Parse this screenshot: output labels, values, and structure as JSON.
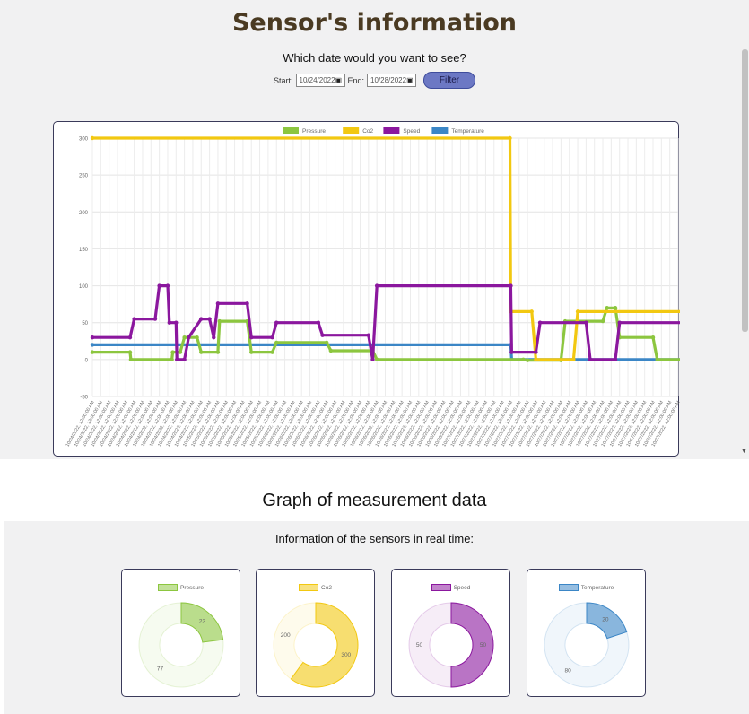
{
  "header": {
    "title": "Sensor's information",
    "question": "Which date would you want to see?"
  },
  "filter": {
    "start_label": "Start:",
    "start_value": "10/24/2022",
    "end_label": "End:",
    "end_value": "10/28/2022",
    "button_label": "Filter"
  },
  "colors": {
    "pressure": "#8cc63f",
    "co2": "#f2c811",
    "speed": "#8b179e",
    "temperature": "#3b86c6"
  },
  "chart_data": {
    "type": "line",
    "title": "",
    "xlabel": "",
    "ylabel": "",
    "ylim": [
      -50,
      300
    ],
    "yticks": [
      -50,
      0,
      50,
      100,
      150,
      200,
      250,
      300
    ],
    "grid": true,
    "legend_position": "top",
    "x_tick_count": 71,
    "x_tick_labels": [
      "10/24/2022, 12:00:00 AM",
      "10/24/2022, 12:00:00 AM",
      "10/24/2022, 12:00:00 AM",
      "10/24/2022, 12:00:00 AM",
      "10/24/2022, 12:00:00 AM",
      "10/24/2022, 12:00:00 AM",
      "10/24/2022, 12:00:00 AM",
      "10/24/2022, 12:00:00 AM",
      "10/24/2022, 12:00:00 AM",
      "10/24/2022, 12:00:00 AM",
      "10/24/2022, 12:00:00 AM",
      "10/24/2022, 12:00:00 AM",
      "10/24/2022, 12:00:00 AM",
      "10/24/2022, 12:00:00 AM",
      "10/25/2022, 12:00:00 AM",
      "10/25/2022, 12:00:00 AM",
      "10/25/2022, 12:00:00 AM",
      "10/25/2022, 12:00:00 AM",
      "10/25/2022, 12:00:00 AM",
      "10/25/2022, 12:00:00 AM",
      "10/25/2022, 12:00:00 AM",
      "10/25/2022, 12:00:00 AM",
      "10/25/2022, 12:00:00 AM",
      "10/26/2022, 12:00:00 AM",
      "10/26/2022, 12:00:00 AM",
      "10/26/2022, 12:00:00 AM",
      "10/26/2022, 12:00:00 AM",
      "10/26/2022, 12:00:00 AM",
      "10/26/2022, 12:00:00 AM",
      "10/26/2022, 12:00:00 AM",
      "10/26/2022, 12:00:00 AM",
      "10/26/2022, 12:00:00 AM",
      "10/26/2022, 12:00:00 AM",
      "10/26/2022, 12:00:00 AM",
      "10/26/2022, 12:00:00 AM",
      "10/26/2022, 12:00:00 AM",
      "10/26/2022, 12:00:00 AM",
      "10/26/2022, 12:00:00 AM",
      "10/26/2022, 12:00:00 AM",
      "10/26/2022, 12:00:00 AM",
      "10/26/2022, 12:00:00 AM",
      "10/26/2022, 12:00:00 AM",
      "10/26/2022, 12:00:00 AM",
      "10/26/2022, 12:00:00 AM",
      "10/26/2022, 12:00:00 AM",
      "10/27/2022, 12:00:00 AM",
      "10/27/2022, 12:00:00 AM",
      "10/27/2022, 12:00:00 AM",
      "10/27/2022, 12:00:00 AM",
      "10/27/2022, 12:00:00 AM",
      "10/27/2022, 12:00:00 AM",
      "10/27/2022, 12:00:00 AM",
      "10/27/2022, 12:00:00 AM",
      "10/27/2022, 12:00:00 AM",
      "10/27/2022, 12:00:00 AM",
      "10/27/2022, 12:00:00 AM",
      "10/27/2022, 12:00:00 AM",
      "10/27/2022, 12:00:00 AM",
      "10/27/2022, 12:00:00 AM",
      "10/27/2022, 12:00:00 AM",
      "10/27/2022, 12:00:00 AM",
      "10/27/2022, 12:00:00 AM",
      "10/27/2022, 12:00:00 AM",
      "10/27/2022, 12:00:00 AM",
      "10/27/2022, 12:00:00 AM",
      "10/27/2022, 12:00:00 AM",
      "10/27/2022, 12:00:00 AM",
      "10/27/2022, 12:00:00 AM",
      "10/27/2022, 12:00:00 AM",
      "10/27/2022, 12:00:00 AM",
      "10/27/2022, 12:00:00 AM"
    ],
    "series": [
      {
        "name": "Pressure",
        "color": "#8cc63f",
        "points": [
          [
            0,
            10
          ],
          [
            4.5,
            10
          ],
          [
            4.6,
            0
          ],
          [
            9.5,
            0
          ],
          [
            9.6,
            10
          ],
          [
            10.5,
            10
          ],
          [
            11,
            30
          ],
          [
            12.5,
            30
          ],
          [
            13,
            10
          ],
          [
            15,
            10
          ],
          [
            15.2,
            52
          ],
          [
            18.5,
            52
          ],
          [
            19,
            10
          ],
          [
            21.5,
            10
          ],
          [
            22,
            23
          ],
          [
            28,
            23
          ],
          [
            28.5,
            12
          ],
          [
            33.5,
            12
          ],
          [
            34,
            0
          ],
          [
            51.5,
            0
          ],
          [
            52,
            -1
          ],
          [
            56,
            -1
          ],
          [
            56.5,
            52
          ],
          [
            61,
            52
          ],
          [
            61.5,
            70
          ],
          [
            62.5,
            70
          ],
          [
            63,
            30
          ],
          [
            67,
            30
          ],
          [
            67.5,
            0
          ],
          [
            70.5,
            0
          ],
          [
            71,
            0
          ]
        ]
      },
      {
        "name": "Co2",
        "color": "#f2c811",
        "points": [
          [
            0,
            300
          ],
          [
            49.9,
            300
          ],
          [
            50,
            65
          ],
          [
            52.5,
            65
          ],
          [
            53,
            0
          ],
          [
            57.5,
            0
          ],
          [
            58,
            65
          ],
          [
            71,
            65
          ]
        ]
      },
      {
        "name": "Speed",
        "color": "#8b179e",
        "points": [
          [
            0,
            30
          ],
          [
            4.5,
            30
          ],
          [
            5,
            55
          ],
          [
            7.5,
            55
          ],
          [
            8,
            100
          ],
          [
            9,
            100
          ],
          [
            9.2,
            50
          ],
          [
            10,
            50
          ],
          [
            10.1,
            0
          ],
          [
            11,
            0
          ],
          [
            11.5,
            30
          ],
          [
            13,
            55
          ],
          [
            14,
            55
          ],
          [
            14.5,
            30
          ],
          [
            15,
            76
          ],
          [
            18.5,
            76
          ],
          [
            19,
            30
          ],
          [
            21.5,
            30
          ],
          [
            22,
            50
          ],
          [
            27,
            50
          ],
          [
            27.5,
            33
          ],
          [
            33,
            33
          ],
          [
            33.5,
            0
          ],
          [
            34,
            100
          ],
          [
            50,
            100
          ],
          [
            50.1,
            10
          ],
          [
            53,
            10
          ],
          [
            53.5,
            50
          ],
          [
            59,
            50
          ],
          [
            59.5,
            0
          ],
          [
            62.5,
            0
          ],
          [
            63,
            50
          ],
          [
            71,
            50
          ]
        ]
      },
      {
        "name": "Temperature",
        "color": "#3b86c6",
        "points": [
          [
            0,
            20
          ],
          [
            50,
            20
          ],
          [
            50.1,
            0
          ],
          [
            71,
            0
          ]
        ]
      }
    ]
  },
  "graph_heading": "Graph of measurement data",
  "realtime": {
    "title": "Information of the sensors in real time:",
    "donuts": [
      {
        "label": "Pressure",
        "color": "#8cc63f",
        "value": 23,
        "remaining": 77
      },
      {
        "label": "Co2",
        "color": "#f2c811",
        "value": 300,
        "remaining": 200
      },
      {
        "label": "Speed",
        "color": "#8b179e",
        "value": 50,
        "remaining": 50
      },
      {
        "label": "Temperature",
        "color": "#3b86c6",
        "value": 20,
        "remaining": 80
      }
    ]
  }
}
